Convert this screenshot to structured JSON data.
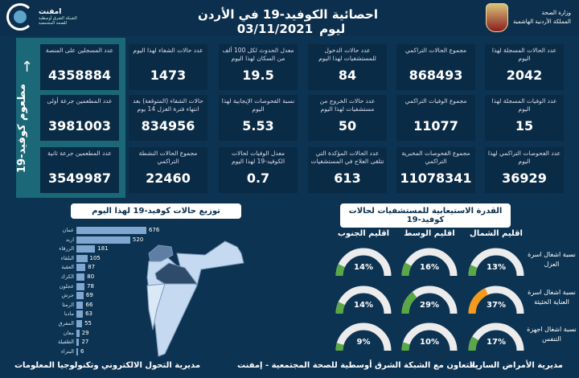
{
  "header": {
    "title": "احصائية الكوفيد-19 في الأردن ليوم",
    "date": "03/11/2021",
    "ministry_line1": "وزارة الصحة",
    "ministry_line2": "المملكة الأردنية الهاشمية",
    "partner_name": "امفنت",
    "partner_sub": "الشبكة الشرق أوسطية للصحة المجتمعية"
  },
  "vaccine": {
    "label": "مطعوم كوفيد-19",
    "icon": "syringe-icon"
  },
  "cards": [
    {
      "label": "عدد الحالات المسجلة لهذا اليوم",
      "value": "2042"
    },
    {
      "label": "مجموع الحالات التراكمي",
      "value": "868493"
    },
    {
      "label": "عدد حالات الدخول للمستشفيات لهذا اليوم",
      "value": "84"
    },
    {
      "label": "معدل الحدوث لكل 100 ألف من السكان لهذا اليوم",
      "value": "19.5"
    },
    {
      "label": "عدد حالات الشفاء لهذا اليوم",
      "value": "1473"
    },
    {
      "label": "عدد المسجلين على المنصة",
      "value": "4358884"
    },
    {
      "label": "عدد الوفيات المسجلة لهذا اليوم",
      "value": "15"
    },
    {
      "label": "مجموع الوفيات التراكمي",
      "value": "11077"
    },
    {
      "label": "عدد حالات الخروج من مستشفيات لهذا اليوم",
      "value": "50"
    },
    {
      "label": "نسبة الفحوصات الإيجابية لهذا اليوم",
      "value": "5.53"
    },
    {
      "label": "حالات الشفاء (المتوقعة) بعد انتهاء فترة العزل 14 يوم",
      "value": "834956"
    },
    {
      "label": "عدد المطعمين جرعة أولى",
      "value": "3981003"
    },
    {
      "label": "عدد الفحوصات التراكمي لهذا اليوم",
      "value": "36929"
    },
    {
      "label": "مجموع الفحوصات المخبرية التراكمي",
      "value": "11078341"
    },
    {
      "label": "عدد الحالات المؤكدة التي تتلقى العلاج في المستشفيات",
      "value": "613"
    },
    {
      "label": "معدل الوفيات لحالات الكوفيد-19 لهذا اليوم",
      "value": "0.7"
    },
    {
      "label": "مجموع الحالات النشطة التراكمي",
      "value": "22460"
    },
    {
      "label": "عدد المطعمين جرعة ثانية",
      "value": "3549987"
    }
  ],
  "distribution": {
    "title": "توزيع حالات كوفيد-19 لهذا اليوم",
    "bar_color": "#7fa7d0",
    "items": [
      {
        "name": "عمان",
        "value": 676
      },
      {
        "name": "اربد",
        "value": 520
      },
      {
        "name": "الزرقاء",
        "value": 181
      },
      {
        "name": "البلقاء",
        "value": 105
      },
      {
        "name": "العقبة",
        "value": 87
      },
      {
        "name": "الكرك",
        "value": 80
      },
      {
        "name": "عجلون",
        "value": 78
      },
      {
        "name": "جرش",
        "value": 69
      },
      {
        "name": "الرمثا",
        "value": 66
      },
      {
        "name": "مادبا",
        "value": 63
      },
      {
        "name": "المفرق",
        "value": 55
      },
      {
        "name": "معان",
        "value": 29
      },
      {
        "name": "الطفيلة",
        "value": 27
      },
      {
        "name": "البتراء",
        "value": 6
      }
    ]
  },
  "capacity": {
    "title": "القدرة الاستيعابية للمستشفيات لحالات كوفيد-19",
    "regions": [
      "اقليم الشمال",
      "اقليم الوسط",
      "اقليم الجنوب"
    ],
    "rows": [
      {
        "label": "نسبة اشغال اسرة العزل",
        "values": [
          13,
          16,
          14
        ]
      },
      {
        "label": "نسبة اشغال اسرة العناية الحثيثة",
        "values": [
          37,
          29,
          14
        ]
      },
      {
        "label": "نسبة اشغال اجهزة التنفس",
        "values": [
          17,
          10,
          9
        ]
      }
    ],
    "colors": {
      "normal": "#5aa845",
      "warning": "#f59a1b",
      "track": "#ececec"
    }
  },
  "footer": {
    "right": "مديرية الأمراض السارية",
    "middle": "بالتعاون مع الشبكة الشرق أوسطية للصحة المجتمعية - إمفنت",
    "left": "مديرية التحول الالكتروني وتكنولوجيا المعلومات"
  }
}
